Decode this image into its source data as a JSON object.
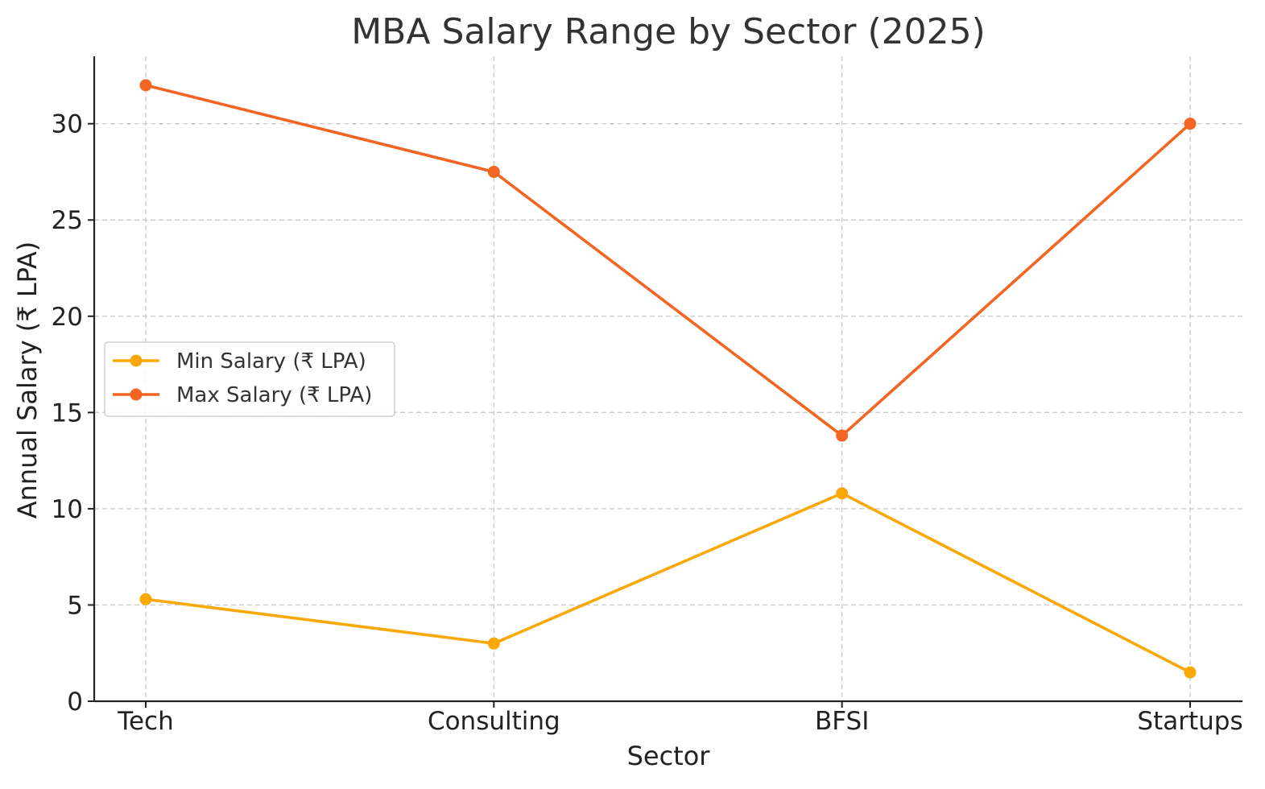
{
  "chart_data": {
    "type": "line",
    "title": "MBA Salary Range by Sector (2025)",
    "xlabel": "Sector",
    "ylabel": "Annual Salary (₹ LPA)",
    "categories": [
      "Tech",
      "Consulting",
      "BFSI",
      "Startups"
    ],
    "ylim": [
      0,
      33.5
    ],
    "yticks": [
      0,
      5,
      10,
      15,
      20,
      25,
      30
    ],
    "grid": true,
    "legend_position": "center-left",
    "series": [
      {
        "name": "Min Salary (₹ LPA)",
        "color": "#F9A806",
        "marker": "circle",
        "values": [
          5.3,
          3.0,
          10.8,
          1.5
        ]
      },
      {
        "name": "Max Salary (₹ LPA)",
        "color": "#F26522",
        "marker": "circle",
        "values": [
          32.0,
          27.5,
          13.8,
          30.0
        ]
      }
    ]
  }
}
